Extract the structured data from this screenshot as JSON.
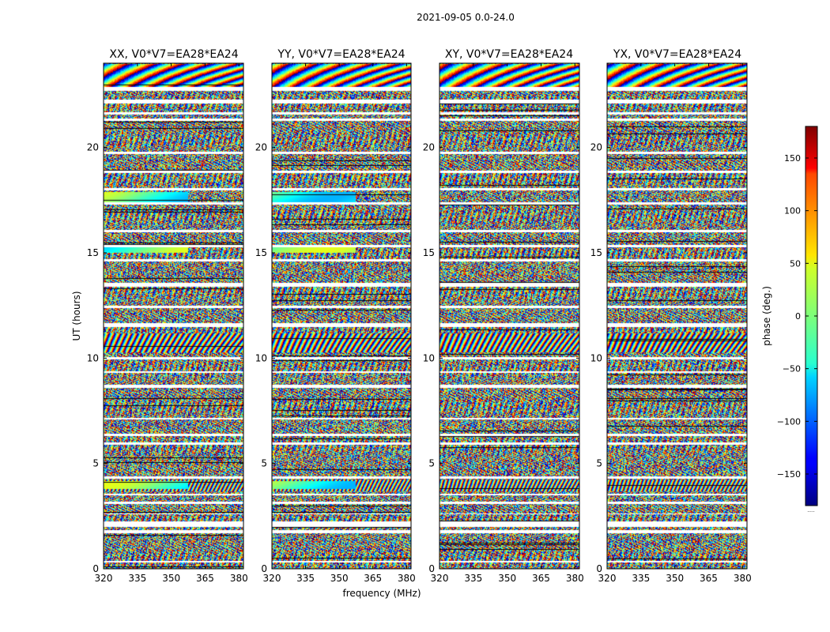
{
  "chart_data": {
    "type": "heatmap",
    "title": "2021-09-05 0.0-24.0",
    "xlabel": "frequency (MHz)",
    "ylabel": "UT (hours)",
    "xlim": [
      320,
      382
    ],
    "ylim": [
      0,
      24
    ],
    "xticks": [
      320,
      335,
      350,
      365,
      380
    ],
    "yticks": [
      0,
      5,
      10,
      15,
      20
    ],
    "panels": [
      {
        "name": "XX",
        "title": "XX, V0*V7=EA28*EA24"
      },
      {
        "name": "YY",
        "title": "YY, V0*V7=EA28*EA24"
      },
      {
        "name": "XY",
        "title": "XY, V0*V7=EA28*EA24"
      },
      {
        "name": "YX",
        "title": "YX, V0*V7=EA28*EA24"
      }
    ],
    "colorbar": {
      "label": "phase (deg.)",
      "min": -180,
      "max": 180,
      "ticks": [
        -150,
        -100,
        -50,
        0,
        50,
        100,
        150
      ],
      "colormap": "jet",
      "footnote": "....."
    },
    "flagged_ut_ranges": [
      [
        0.3,
        0.4
      ],
      [
        1.7,
        1.85
      ],
      [
        2.0,
        2.25
      ],
      [
        2.6,
        2.65
      ],
      [
        3.1,
        3.2
      ],
      [
        3.5,
        3.6
      ],
      [
        4.3,
        4.4
      ],
      [
        5.9,
        6.0
      ],
      [
        6.3,
        6.45
      ],
      [
        7.1,
        7.2
      ],
      [
        8.6,
        8.75
      ],
      [
        9.3,
        9.4
      ],
      [
        9.95,
        10.05
      ],
      [
        11.5,
        11.7
      ],
      [
        12.4,
        12.5
      ],
      [
        13.4,
        13.6
      ],
      [
        14.6,
        14.7
      ],
      [
        15.3,
        15.4
      ],
      [
        16.0,
        16.1
      ],
      [
        17.3,
        17.4
      ],
      [
        18.0,
        18.1
      ],
      [
        18.8,
        18.9
      ],
      [
        19.7,
        19.8
      ],
      [
        21.3,
        21.4
      ],
      [
        21.6,
        21.7
      ],
      [
        22.1,
        22.3
      ],
      [
        22.7,
        22.9
      ]
    ]
  }
}
